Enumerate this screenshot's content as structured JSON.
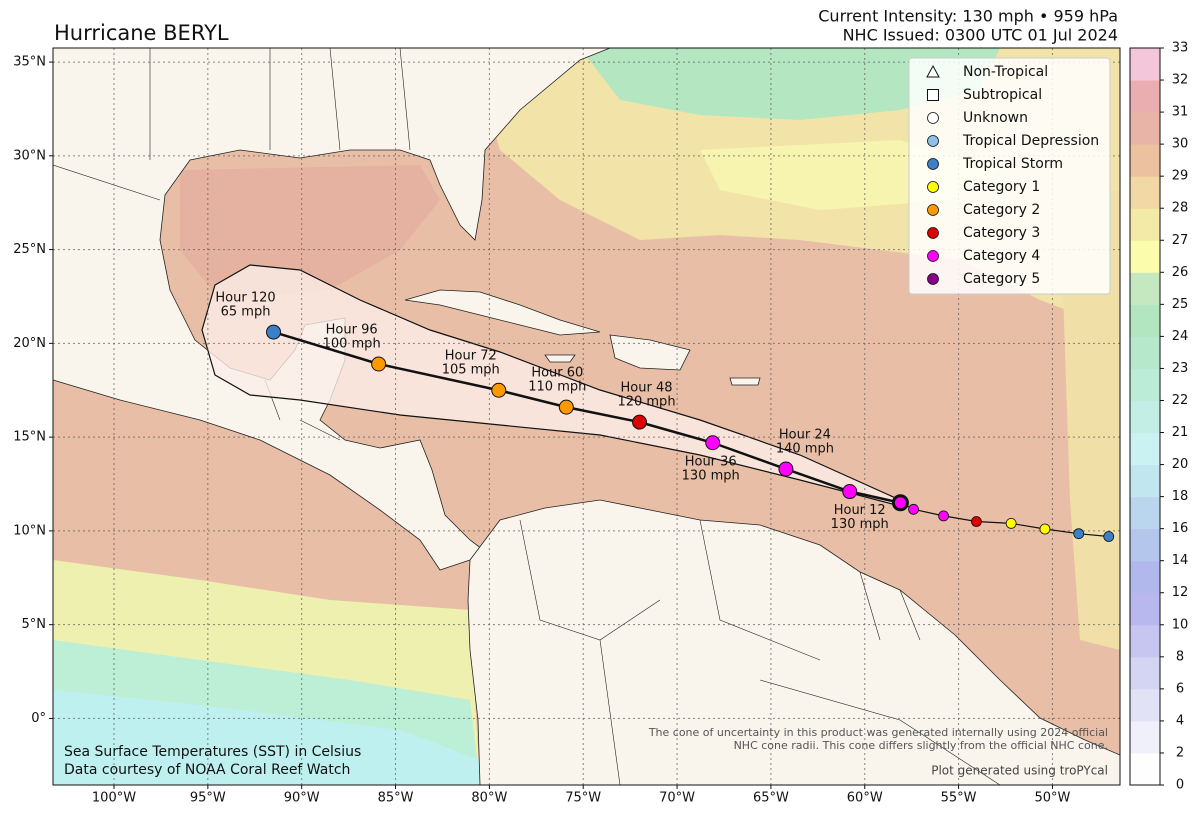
{
  "header": {
    "title": "Hurricane BERYL",
    "intensity": "Current Intensity: 130 mph • 959 hPa",
    "issued": "NHC Issued: 0300 UTC 01 Jul 2024"
  },
  "chart_data": {
    "type": "map",
    "xlim": [
      -103.25,
      -46.4
    ],
    "ylim": [
      -3.55,
      35.75
    ],
    "xticks": [
      {
        "value": -100,
        "label": "100°W"
      },
      {
        "value": -95,
        "label": "95°W"
      },
      {
        "value": -90,
        "label": "90°W"
      },
      {
        "value": -85,
        "label": "85°W"
      },
      {
        "value": -80,
        "label": "80°W"
      },
      {
        "value": -75,
        "label": "75°W"
      },
      {
        "value": -70,
        "label": "70°W"
      },
      {
        "value": -65,
        "label": "65°W"
      },
      {
        "value": -60,
        "label": "60°W"
      },
      {
        "value": -55,
        "label": "55°W"
      },
      {
        "value": -50,
        "label": "50°W"
      }
    ],
    "yticks": [
      {
        "value": 0,
        "label": "0°"
      },
      {
        "value": 5,
        "label": "5°N"
      },
      {
        "value": 10,
        "label": "10°N"
      },
      {
        "value": 15,
        "label": "15°N"
      },
      {
        "value": 20,
        "label": "20°N"
      },
      {
        "value": 25,
        "label": "25°N"
      },
      {
        "value": 30,
        "label": "30°N"
      },
      {
        "value": 35,
        "label": "35°N"
      }
    ],
    "grid": true,
    "legend": {
      "loc": "upper right",
      "items": [
        {
          "name": "Non-Tropical",
          "marker": "triangle",
          "color": "#ffffff"
        },
        {
          "name": "Subtropical",
          "marker": "square",
          "color": "#ffffff"
        },
        {
          "name": "Unknown",
          "marker": "circle",
          "color": "#ffffff"
        },
        {
          "name": "Tropical Depression",
          "marker": "circle",
          "color": "#8fbfe8"
        },
        {
          "name": "Tropical Storm",
          "marker": "circle",
          "color": "#3a7fc8"
        },
        {
          "name": "Category 1",
          "marker": "circle",
          "color": "#ffff00"
        },
        {
          "name": "Category 2",
          "marker": "circle",
          "color": "#ff9900"
        },
        {
          "name": "Category 3",
          "marker": "circle",
          "color": "#dd0000"
        },
        {
          "name": "Category 4",
          "marker": "circle",
          "color": "#ff00ff"
        },
        {
          "name": "Category 5",
          "marker": "circle",
          "color": "#8b008b"
        }
      ]
    },
    "current": {
      "lon": -58.1,
      "lat": 11.5,
      "category": "Category 4"
    },
    "forecast": [
      {
        "label": "Hour 12",
        "wind": "130 mph",
        "lon": -60.8,
        "lat": 12.1,
        "category": "Category 4"
      },
      {
        "label": "Hour 24",
        "wind": "140 mph",
        "lon": -64.2,
        "lat": 13.3,
        "category": "Category 4"
      },
      {
        "label": "Hour 36",
        "wind": "130 mph",
        "lon": -68.1,
        "lat": 14.7,
        "category": "Category 4"
      },
      {
        "label": "Hour 48",
        "wind": "120 mph",
        "lon": -72.0,
        "lat": 15.8,
        "category": "Category 3"
      },
      {
        "label": "Hour 60",
        "wind": "110 mph",
        "lon": -75.9,
        "lat": 16.6,
        "category": "Category 2"
      },
      {
        "label": "Hour 72",
        "wind": "105 mph",
        "lon": -79.5,
        "lat": 17.5,
        "category": "Category 2"
      },
      {
        "label": "Hour 96",
        "wind": "100 mph",
        "lon": -85.9,
        "lat": 18.9,
        "category": "Category 2"
      },
      {
        "label": "Hour 120",
        "wind": "65 mph",
        "lon": -91.5,
        "lat": 20.6,
        "category": "Tropical Storm"
      }
    ],
    "past_track": [
      {
        "lon": -57.4,
        "lat": 11.15,
        "category": "Category 4"
      },
      {
        "lon": -55.8,
        "lat": 10.8,
        "category": "Category 4"
      },
      {
        "lon": -54.05,
        "lat": 10.5,
        "category": "Category 3"
      },
      {
        "lon": -52.2,
        "lat": 10.4,
        "category": "Category 1"
      },
      {
        "lon": -50.4,
        "lat": 10.1,
        "category": "Category 1"
      },
      {
        "lon": -48.6,
        "lat": 9.85,
        "category": "Tropical Storm"
      },
      {
        "lon": -47.0,
        "lat": 9.7,
        "category": "Tropical Storm"
      }
    ],
    "colorbar": {
      "ticks": [
        0,
        2,
        4,
        6,
        8,
        10,
        12,
        14,
        16,
        18,
        20,
        21,
        22,
        23,
        24,
        25,
        26,
        27,
        28,
        29,
        30,
        31,
        32,
        33
      ],
      "colors": [
        "#fefeff",
        "#f0f0fb",
        "#e2e2f7",
        "#d4d4f3",
        "#c6c6f0",
        "#b8b8ee",
        "#b0b8ec",
        "#b4c6ec",
        "#bad6ee",
        "#c2e6f0",
        "#cbf2f2",
        "#c2eee6",
        "#bbecd8",
        "#b6e9cc",
        "#b2e6c0",
        "#c5e8c0",
        "#fbfcac",
        "#f4eaa8",
        "#f1d8a4",
        "#ebc1a0",
        "#e9b4a8",
        "#eaaeb0",
        "#f3c6da"
      ]
    },
    "annotations": {
      "sst_title": "Sea Surface Temperatures (SST) in Celsius",
      "sst_credit": "Data courtesy of NOAA Coral Reef Watch",
      "cone_note_1": "The cone of uncertainty in this product was generated internally using 2024 official",
      "cone_note_2": "NHC cone radii. This cone differs slightly from the official NHC cone.",
      "credit": "Plot generated using troPYcal"
    }
  }
}
